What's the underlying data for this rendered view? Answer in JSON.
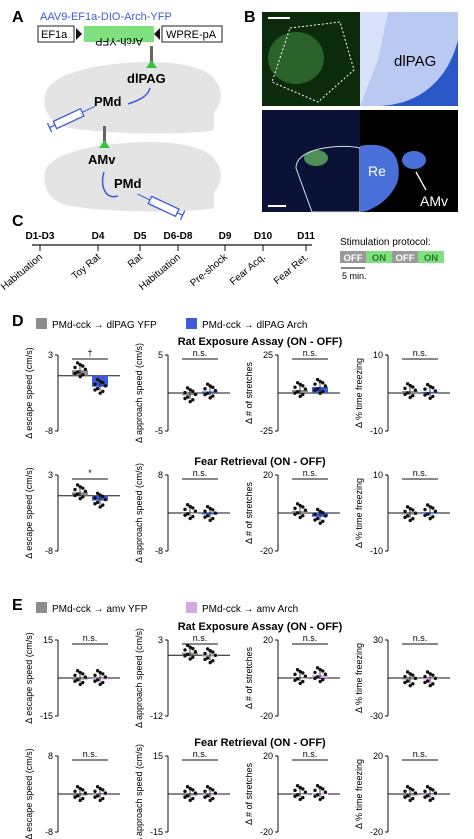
{
  "panel_letters": [
    "A",
    "B",
    "C",
    "D",
    "E"
  ],
  "panelA": {
    "virus": "AAV9-EF1a-DIO-Arch-YFP",
    "construct": {
      "ef1a": "EF1a",
      "arch": "Arch-YFP",
      "wpre": "WPRE-pA"
    },
    "top_brain": {
      "target": "dlPAG",
      "source": "PMd"
    },
    "bottom_brain": {
      "target": "AMv",
      "source": "PMd"
    }
  },
  "panelB": {
    "top_label": "dlPAG",
    "bottom_label_1": "Re",
    "bottom_label_2": "AMv"
  },
  "panelC": {
    "days": [
      "D1-D3",
      "D4",
      "D5",
      "D6-D8",
      "D9",
      "D10",
      "D11"
    ],
    "sessions": [
      "Habituation",
      "Toy Rat",
      "Rat",
      "Habituation",
      "Pre-shock",
      "Fear Acq.",
      "Fear Ret."
    ],
    "protocol_title": "Stimulation protocol:",
    "protocol_blocks": [
      "OFF",
      "ON",
      "OFF",
      "ON"
    ],
    "protocol_scale": "5 min."
  },
  "colors": {
    "yfp": "#8c8c8c",
    "arch_dlpag": "#3b5bdb",
    "arch_amv": "#d8a6e8",
    "green": "#7ee07e"
  },
  "panelD": {
    "legend": [
      "PMd-cck → dlPAG YFP",
      "PMd-cck → dlPAG Arch"
    ],
    "rows": [
      {
        "title": "Rat Exposure Assay (ON - OFF)",
        "plots": [
          {
            "ylabel": "Δ escape speed (cm/s)",
            "ymax": "3",
            "ymin": "-8",
            "sig": "†",
            "yfp": 0.8,
            "arch": -1.6
          },
          {
            "ylabel": "Δ approach speed (cm/s)",
            "ymax": "5",
            "ymin": "-5",
            "sig": "n.s.",
            "yfp": -0.3,
            "arch": 0.2
          },
          {
            "ylabel": "Δ # of stretches",
            "ymax": "25",
            "ymin": "-25",
            "sig": "n.s.",
            "yfp": 2.0,
            "arch": 4.0
          },
          {
            "ylabel": "Δ % time freezing",
            "ymax": "10",
            "ymin": "-10",
            "sig": "n.s.",
            "yfp": 0.5,
            "arch": 0.3
          }
        ]
      },
      {
        "title": "Fear Retrieval  (ON - OFF)",
        "plots": [
          {
            "ylabel": "Δ escape speed (cm/s)",
            "ymax": "3",
            "ymin": "-8",
            "sig": "*",
            "yfp": 0.5,
            "arch": -0.7
          },
          {
            "ylabel": "Δ approach speed (cm/s)",
            "ymax": "8",
            "ymin": "-8",
            "sig": "n.s.",
            "yfp": 0.2,
            "arch": -0.2
          },
          {
            "ylabel": "Δ # of stretches",
            "ymax": "20",
            "ymin": "-20",
            "sig": "n.s.",
            "yfp": 1.0,
            "arch": -2.0
          },
          {
            "ylabel": "Δ % time freezing",
            "ymax": "10",
            "ymin": "-10",
            "sig": "n.s.",
            "yfp": -0.3,
            "arch": 0.2
          }
        ]
      }
    ]
  },
  "panelE": {
    "legend": [
      "PMd-cck → amv YFP",
      "PMd-cck → amv Arch"
    ],
    "rows": [
      {
        "title": "Rat Exposure Assay (ON - OFF)",
        "plots": [
          {
            "ylabel": "Δ escape speed (cm/s)",
            "ymax": "15",
            "ymin": "-15",
            "sig": "n.s.",
            "yfp": 0.0,
            "arch": 0.0
          },
          {
            "ylabel": "Δ approach speed (cm/s)",
            "ymax": "3",
            "ymin": "-12",
            "sig": "n.s.",
            "yfp": 0.5,
            "arch": -0.2
          },
          {
            "ylabel": "Δ # of stretches",
            "ymax": "20",
            "ymin": "-20",
            "sig": "n.s.",
            "yfp": 0.5,
            "arch": 1.5
          },
          {
            "ylabel": "Δ % time freezing",
            "ymax": "30",
            "ymin": "-30",
            "sig": "n.s.",
            "yfp": -1.0,
            "arch": -1.0
          }
        ]
      },
      {
        "title": "Fear Retrieval (ON - OFF)",
        "plots": [
          {
            "ylabel": "Δ escape speed (cm/s)",
            "ymax": "8",
            "ymin": "-8",
            "sig": "n.s.",
            "yfp": 0.0,
            "arch": 0.0
          },
          {
            "ylabel": "Δ approach speed (cm/s)",
            "ymax": "15",
            "ymin": "-15",
            "sig": "n.s.",
            "yfp": 0.0,
            "arch": 0.0
          },
          {
            "ylabel": "Δ # of stretches",
            "ymax": "20",
            "ymin": "-20",
            "sig": "n.s.",
            "yfp": 0.5,
            "arch": 0.5
          },
          {
            "ylabel": "Δ % time freezing",
            "ymax": "20",
            "ymin": "-20",
            "sig": "n.s.",
            "yfp": 0.0,
            "arch": 0.0
          }
        ]
      }
    ]
  }
}
